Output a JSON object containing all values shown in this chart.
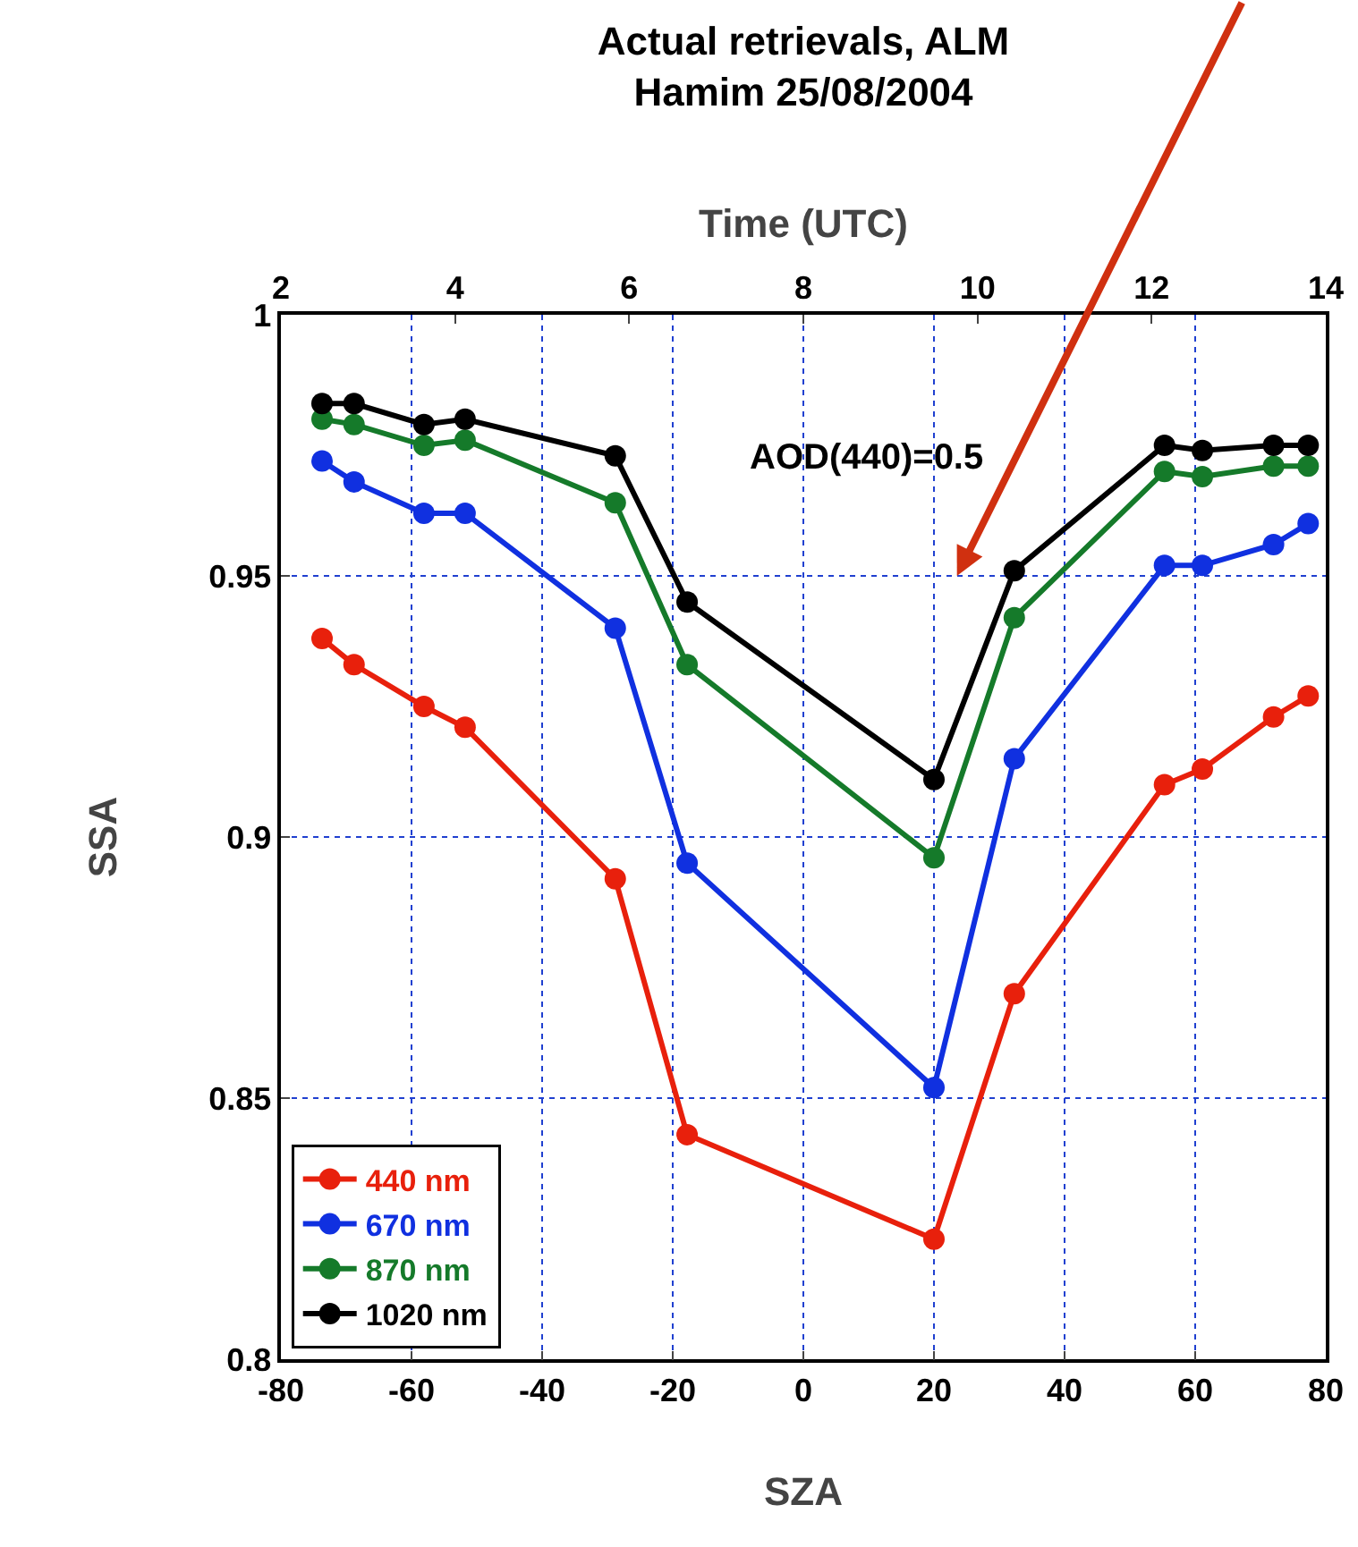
{
  "chart_data": {
    "type": "line",
    "title": "Actual retrievals, ALM",
    "subtitle": "Hamim 25/08/2004",
    "xlabel": "SZA",
    "ylabel": "SSA",
    "x2label": "Time (UTC)",
    "x": [
      -73.7,
      -68.8,
      -58.1,
      -51.8,
      -28.8,
      -17.8,
      20,
      32.3,
      55.3,
      61.1,
      72,
      77.3
    ],
    "series": [
      {
        "name": "440 nm",
        "color": "#e8200c",
        "values": [
          0.938,
          0.933,
          0.925,
          0.921,
          0.892,
          0.843,
          0.823,
          0.87,
          0.91,
          0.913,
          0.923,
          0.927
        ]
      },
      {
        "name": "670 nm",
        "color": "#1030e0",
        "values": [
          0.972,
          0.968,
          0.962,
          0.962,
          0.94,
          0.895,
          0.852,
          0.915,
          0.952,
          0.952,
          0.956,
          0.96
        ]
      },
      {
        "name": "870 nm",
        "color": "#157a2a",
        "values": [
          0.98,
          0.979,
          0.975,
          0.976,
          0.964,
          0.933,
          0.896,
          0.942,
          0.97,
          0.969,
          0.971,
          0.971
        ]
      },
      {
        "name": "1020 nm",
        "color": "#000000",
        "values": [
          0.983,
          0.983,
          0.979,
          0.98,
          0.973,
          0.945,
          0.911,
          0.951,
          0.975,
          0.974,
          0.975,
          0.975
        ]
      }
    ],
    "xlim": [
      -80,
      80
    ],
    "xticks": [
      -80,
      -60,
      -40,
      -20,
      0,
      20,
      40,
      60,
      80
    ],
    "x2lim": [
      2,
      14
    ],
    "x2ticks": [
      2,
      4,
      6,
      8,
      10,
      12,
      14
    ],
    "ylim": [
      0.8,
      1
    ],
    "yticks": [
      0.8,
      0.85,
      0.9,
      0.95,
      1
    ],
    "annotations": [
      "AOD(440)=0.5"
    ],
    "grid": true,
    "legend": "bottom left",
    "marker": "circle",
    "line_style": "solid"
  }
}
